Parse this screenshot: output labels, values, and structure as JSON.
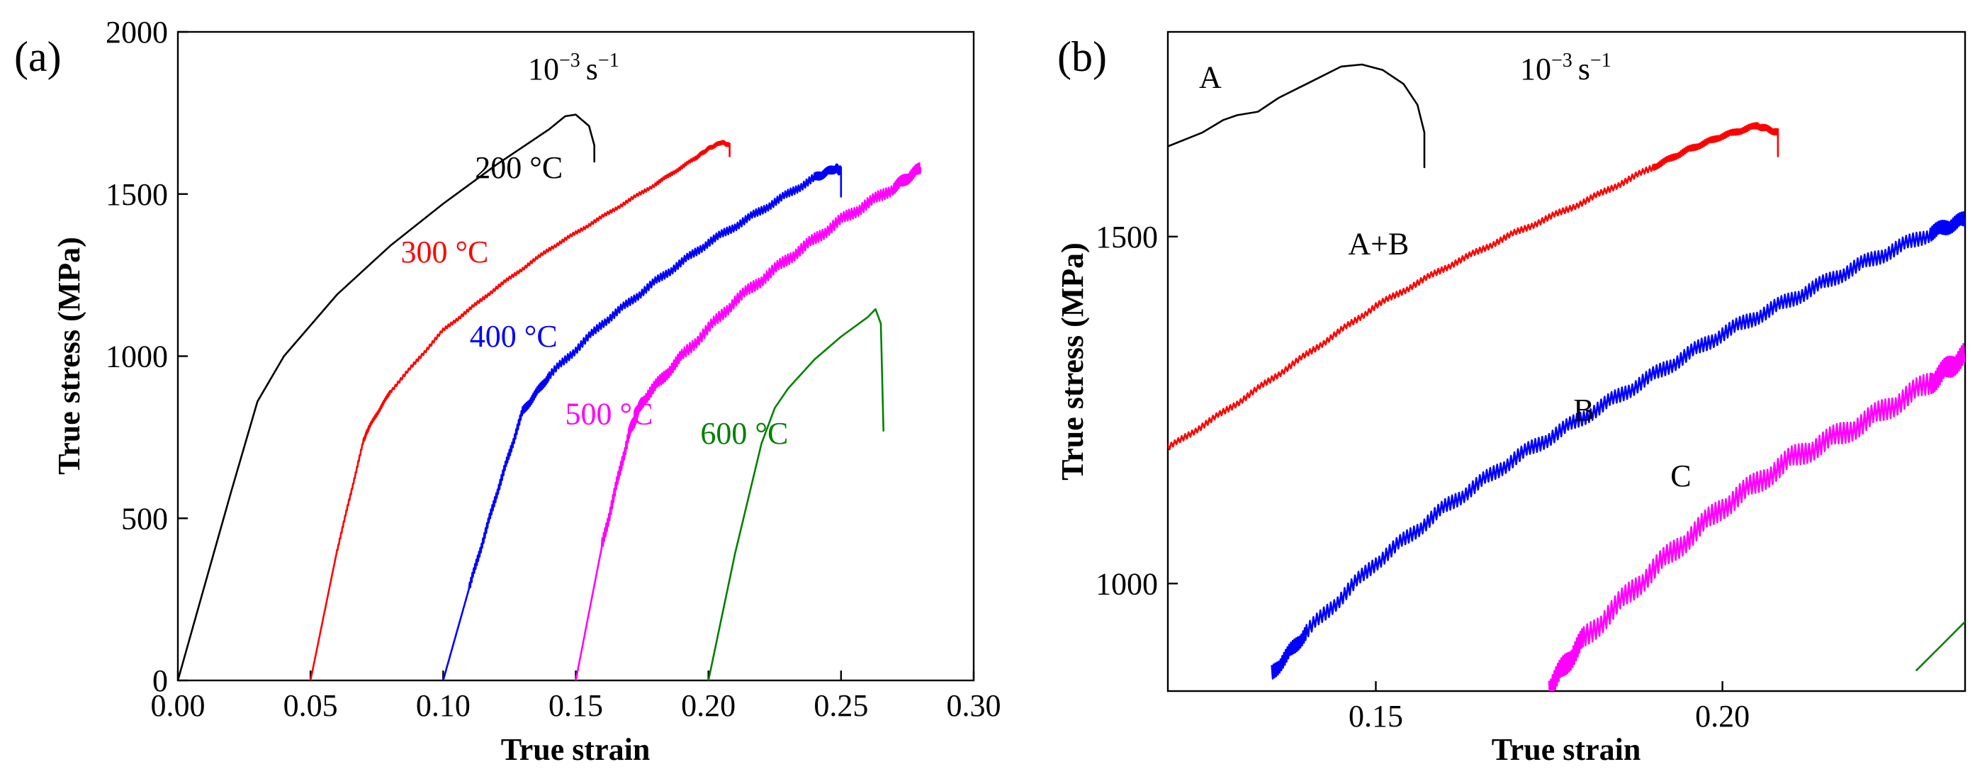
{
  "chart_data": [
    {
      "type": "line",
      "panel_label": "(a)",
      "rate_label": "10",
      "rate_exponent": "−3",
      "rate_unit": "s",
      "rate_unit_exponent": "−1",
      "xlabel": "True strain",
      "ylabel": "True stress (MPa)",
      "xlim": [
        0.0,
        0.3
      ],
      "ylim": [
        0,
        2000
      ],
      "xticks": [
        0.0,
        0.05,
        0.1,
        0.15,
        0.2,
        0.25,
        0.3
      ],
      "xtick_labels": [
        "0.00",
        "0.05",
        "0.10",
        "0.15",
        "0.20",
        "0.25",
        "0.30"
      ],
      "yticks": [
        0,
        500,
        1000,
        1500,
        2000
      ],
      "ytick_labels": [
        "0",
        "500",
        "1000",
        "1500",
        "2000"
      ],
      "series": [
        {
          "name": "200 °C",
          "color": "#000000",
          "serration": 0,
          "x": [
            0.0,
            0.01,
            0.02,
            0.03,
            0.04,
            0.06,
            0.08,
            0.1,
            0.12,
            0.14,
            0.146,
            0.15,
            0.155,
            0.157,
            0.157
          ],
          "y": [
            0,
            290,
            580,
            860,
            1000,
            1190,
            1340,
            1470,
            1590,
            1700,
            1740,
            1745,
            1710,
            1650,
            1600
          ]
        },
        {
          "name": "300 °C",
          "color": "#ff0000",
          "serration": 6,
          "x": [
            0.05,
            0.06,
            0.07,
            0.072,
            0.08,
            0.1,
            0.12,
            0.14,
            0.16,
            0.18,
            0.195,
            0.2,
            0.205,
            0.208,
            0.208
          ],
          "y": [
            0,
            400,
            740,
            780,
            890,
            1080,
            1210,
            1330,
            1430,
            1530,
            1610,
            1640,
            1660,
            1650,
            1620
          ]
        },
        {
          "name": "400 °C",
          "color": "#0000ff",
          "serration": 14,
          "x": [
            0.1,
            0.11,
            0.12,
            0.13,
            0.14,
            0.16,
            0.18,
            0.2,
            0.22,
            0.24,
            0.248,
            0.25,
            0.25
          ],
          "y": [
            0,
            290,
            570,
            830,
            940,
            1100,
            1230,
            1350,
            1450,
            1550,
            1580,
            1570,
            1500
          ]
        },
        {
          "name": "500 °C",
          "color": "#ff00ff",
          "serration": 20,
          "x": [
            0.15,
            0.16,
            0.17,
            0.175,
            0.19,
            0.21,
            0.23,
            0.25,
            0.27,
            0.28
          ],
          "y": [
            0,
            420,
            760,
            860,
            1000,
            1170,
            1300,
            1420,
            1520,
            1580
          ]
        },
        {
          "name": "600 °C",
          "color": "#008000",
          "serration": 0,
          "x": [
            0.2,
            0.21,
            0.22,
            0.225,
            0.23,
            0.24,
            0.25,
            0.26,
            0.263,
            0.265,
            0.266
          ],
          "y": [
            0,
            390,
            730,
            840,
            900,
            990,
            1060,
            1120,
            1145,
            1100,
            770
          ]
        }
      ],
      "annotations": [
        {
          "text": "200 °C",
          "color": "#000000",
          "x": 0.112,
          "y": 1550
        },
        {
          "text": "300 °C",
          "color": "#ff0000",
          "x": 0.084,
          "y": 1290
        },
        {
          "text": "400 °C",
          "color": "#0000ff",
          "x": 0.11,
          "y": 1030
        },
        {
          "text": "500 °C",
          "color": "#ff00ff",
          "x": 0.146,
          "y": 790
        },
        {
          "text": "600 °C",
          "color": "#008000",
          "x": 0.197,
          "y": 730
        }
      ]
    },
    {
      "type": "line",
      "panel_label": "(b)",
      "rate_label": "10",
      "rate_exponent": "−3",
      "rate_unit": "s",
      "rate_unit_exponent": "−1",
      "xlabel": "True strain",
      "ylabel": "True stress (MPa)",
      "xlim": [
        0.12,
        0.235
      ],
      "ylim": [
        845,
        1795
      ],
      "xticks": [
        0.15,
        0.2
      ],
      "xtick_labels": [
        "0.15",
        "0.20"
      ],
      "yticks": [
        1000,
        1500
      ],
      "ytick_labels": [
        "1000",
        "1500"
      ],
      "series": [
        {
          "name": "200 °C",
          "color": "#000000",
          "serration": 0,
          "x": [
            0.12,
            0.125,
            0.128,
            0.13,
            0.133,
            0.136,
            0.14,
            0.145,
            0.148,
            0.151,
            0.154,
            0.156,
            0.157,
            0.157
          ],
          "y": [
            1630,
            1650,
            1668,
            1675,
            1680,
            1700,
            1720,
            1745,
            1748,
            1740,
            1720,
            1690,
            1650,
            1600
          ]
        },
        {
          "name": "300 °C",
          "color": "#ff0000",
          "serration": 5,
          "x": [
            0.12,
            0.13,
            0.14,
            0.15,
            0.16,
            0.17,
            0.18,
            0.19,
            0.195,
            0.2,
            0.205,
            0.208,
            0.208
          ],
          "y": [
            1195,
            1260,
            1330,
            1400,
            1455,
            1505,
            1550,
            1600,
            1625,
            1645,
            1660,
            1650,
            1620
          ]
        },
        {
          "name": "400 °C",
          "color": "#0000ff",
          "serration": 12,
          "x": [
            0.135,
            0.14,
            0.15,
            0.16,
            0.17,
            0.18,
            0.19,
            0.2,
            0.21,
            0.22,
            0.23,
            0.235
          ],
          "y": [
            870,
            930,
            1030,
            1110,
            1180,
            1240,
            1300,
            1360,
            1410,
            1460,
            1505,
            1525
          ]
        },
        {
          "name": "500 °C",
          "color": "#ff00ff",
          "serration": 18,
          "x": [
            0.175,
            0.18,
            0.19,
            0.2,
            0.21,
            0.22,
            0.23,
            0.235
          ],
          "y": [
            850,
            920,
            1020,
            1110,
            1180,
            1230,
            1290,
            1330
          ]
        },
        {
          "name": "600 °C",
          "color": "#008000",
          "serration": 0,
          "x": [
            0.228,
            0.232,
            0.235
          ],
          "y": [
            875,
            915,
            945
          ]
        }
      ],
      "annotations": [
        {
          "text": "A",
          "color": "#000000",
          "x": 0.1245,
          "y": 1715
        },
        {
          "text": "A+B",
          "color": "#000000",
          "x": 0.146,
          "y": 1475
        },
        {
          "text": "B",
          "color": "#000000",
          "x": 0.1785,
          "y": 1235
        },
        {
          "text": "C",
          "color": "#000000",
          "x": 0.1925,
          "y": 1140
        }
      ]
    }
  ]
}
